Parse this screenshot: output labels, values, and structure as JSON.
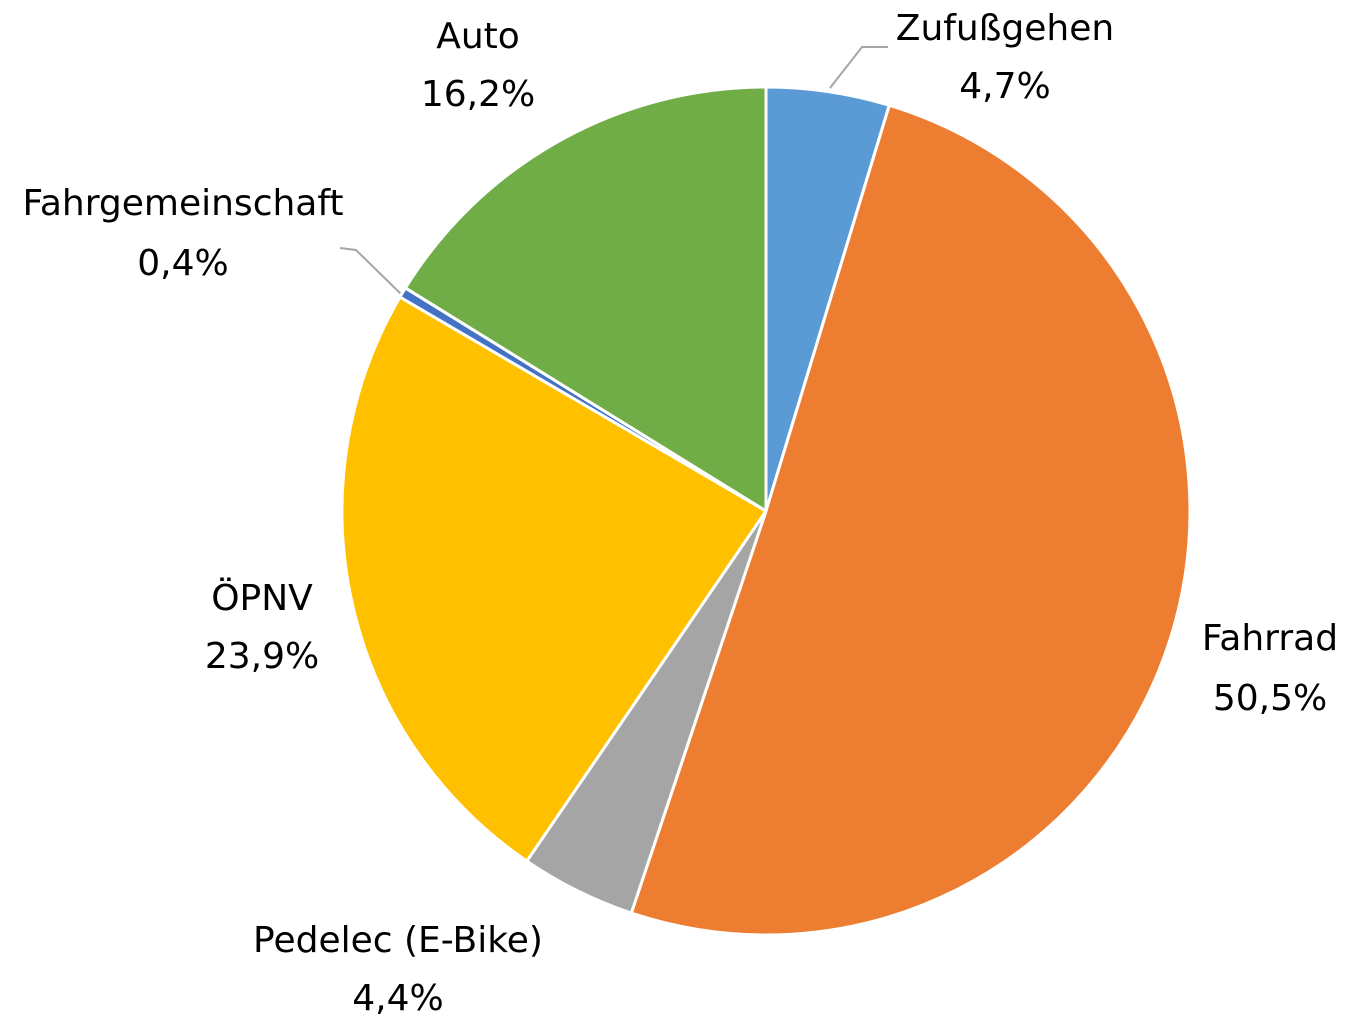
{
  "chart_data": {
    "type": "pie",
    "categories": [
      "Zufußgehen",
      "Fahrrad",
      "Pedelec (E-Bike)",
      "ÖPNV",
      "Fahrgemeinschaft",
      "Auto"
    ],
    "values": [
      4.7,
      50.5,
      4.4,
      23.9,
      0.4,
      16.2
    ],
    "value_labels": [
      "4,7%",
      "50,5%",
      "4,4%",
      "23,9%",
      "0,4%",
      "16,2%"
    ],
    "colors": [
      "#5b9bd5",
      "#ed7d31",
      "#a5a5a5",
      "#ffc000",
      "#4472c4",
      "#70ad47"
    ]
  }
}
